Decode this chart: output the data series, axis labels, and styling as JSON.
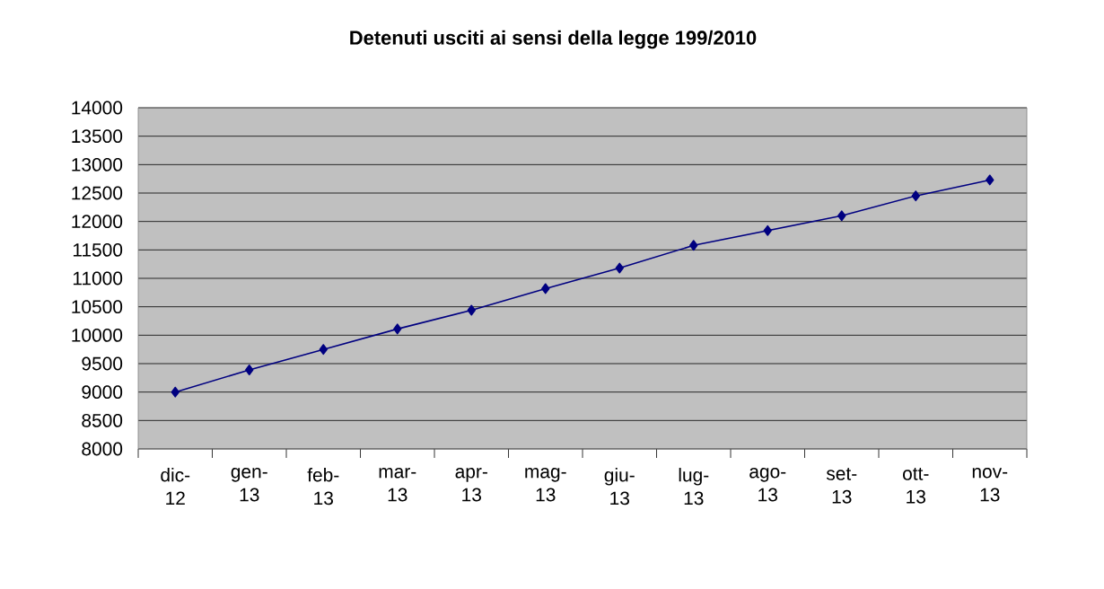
{
  "chart_data": {
    "type": "line",
    "title": "Detenuti usciti ai sensi della legge 199/2010",
    "categories": [
      "dic-12",
      "gen-13",
      "feb-13",
      "mar-13",
      "apr-13",
      "mag-13",
      "giu-13",
      "lug-13",
      "ago-13",
      "set-13",
      "ott-13",
      "nov-13"
    ],
    "series": [
      {
        "color": "#000080",
        "values": [
          9000,
          9390,
          9750,
          10110,
          10440,
          10820,
          11180,
          11580,
          11840,
          12100,
          12450,
          12730
        ]
      }
    ],
    "ylim": [
      8000,
      14000
    ],
    "yticks": [
      8000,
      8500,
      9000,
      9500,
      10000,
      10500,
      11000,
      11500,
      12000,
      12500,
      13000,
      13500,
      14000
    ],
    "grid": "y",
    "legend": false,
    "marker": "diamond",
    "line_style": "solid"
  }
}
